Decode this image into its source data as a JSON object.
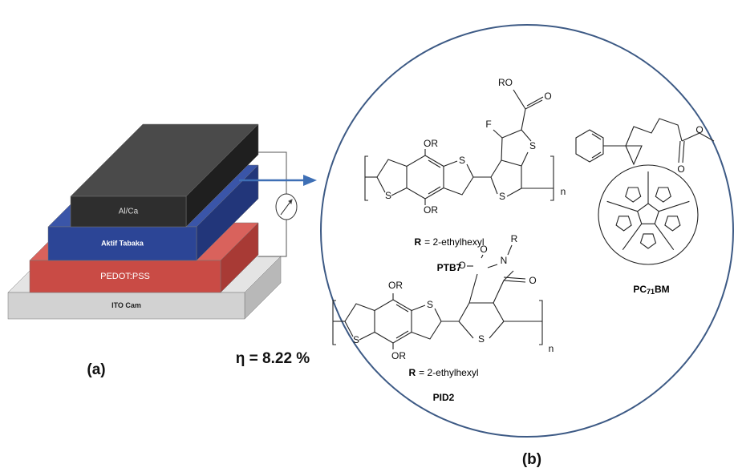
{
  "panel_a": {
    "layers": {
      "top": "Al/Ca",
      "active": "Aktif Tabaka",
      "hole": "PEDOT:PSS",
      "substrate": "ITO Cam"
    },
    "label": "(a)",
    "efficiency": "η = 8.22 %"
  },
  "panel_b": {
    "label": "(b)",
    "ptb7": {
      "atoms": [
        "OR",
        "OR",
        "S",
        "S",
        "S",
        "S",
        "F",
        "RO",
        "O",
        "n"
      ],
      "r_symbol": "R",
      "r_definition": "= 2-ethylhexyl",
      "name": "PTB7"
    },
    "pid2": {
      "atoms": [
        "OR",
        "OR",
        "S",
        "S",
        "S",
        "O",
        "O",
        "N",
        "R",
        "O",
        "n"
      ],
      "r_symbol": "R",
      "r_definition": "= 2-ethylhexyl",
      "name": "PID2"
    },
    "pc71bm": {
      "atoms": [
        "O",
        "O"
      ],
      "name": "PC",
      "name_subscript": "71",
      "name_suffix": "BM"
    }
  }
}
